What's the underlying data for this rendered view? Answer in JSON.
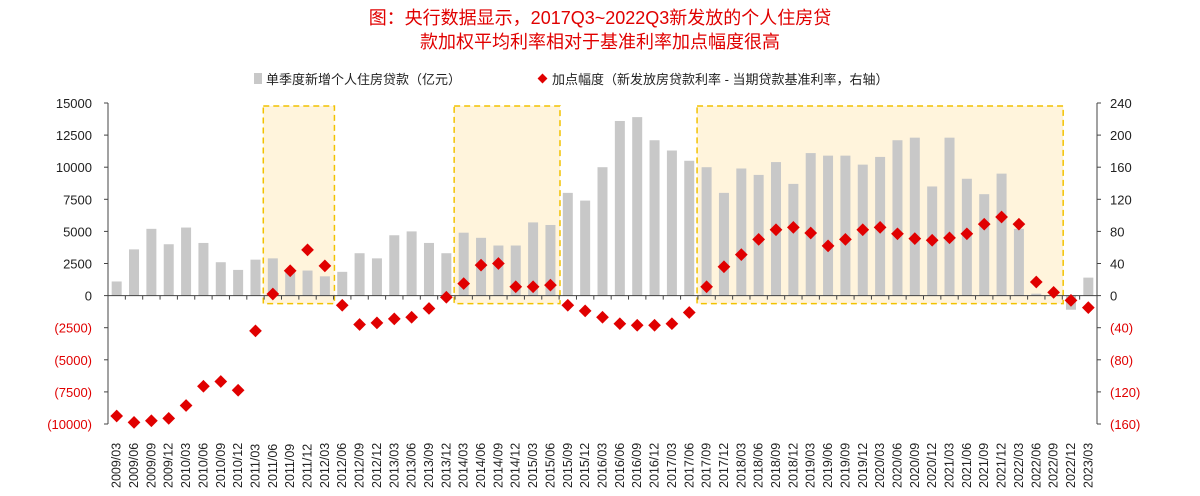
{
  "chart_data": {
    "type": "bar+scatter",
    "title_lines": [
      "图：央行数据显示，2017Q3~2022Q3新发放的个人住房贷",
      "款加权平均利率相对于基准利率加点幅度很高"
    ],
    "legend": [
      {
        "label": "单季度新增个人住房贷款（亿元）",
        "color": "#c8c8c8",
        "marker": "bar"
      },
      {
        "label": "加点幅度（新发放房贷款利率 - 当期贷款基准利率，右轴）",
        "color": "#e00000",
        "marker": "diamond"
      }
    ],
    "categories": [
      "2009/03",
      "2009/06",
      "2009/09",
      "2009/12",
      "2010/03",
      "2010/06",
      "2010/09",
      "2010/12",
      "2011/03",
      "2011/06",
      "2011/09",
      "2011/12",
      "2012/03",
      "2012/06",
      "2012/09",
      "2012/12",
      "2013/03",
      "2013/06",
      "2013/09",
      "2013/12",
      "2014/03",
      "2014/06",
      "2014/09",
      "2014/12",
      "2015/03",
      "2015/06",
      "2015/09",
      "2015/12",
      "2016/03",
      "2016/06",
      "2016/09",
      "2016/12",
      "2017/03",
      "2017/06",
      "2017/09",
      "2017/12",
      "2018/03",
      "2018/06",
      "2018/09",
      "2018/12",
      "2019/03",
      "2019/06",
      "2019/09",
      "2019/12",
      "2020/03",
      "2020/06",
      "2020/09",
      "2020/12",
      "2021/03",
      "2021/06",
      "2021/09",
      "2021/12",
      "2022/03",
      "2022/06",
      "2022/09",
      "2022/12",
      "2023/03"
    ],
    "bars": [
      1100,
      3600,
      5200,
      4000,
      5300,
      4100,
      2600,
      2000,
      2800,
      2900,
      2000,
      1950,
      1500,
      1850,
      3300,
      2900,
      4700,
      5000,
      4100,
      3300,
      4900,
      4500,
      3900,
      3900,
      5700,
      5500,
      8000,
      7400,
      10000,
      13600,
      13900,
      12100,
      11300,
      10500,
      10000,
      8000,
      9900,
      9400,
      10400,
      8700,
      11100,
      10900,
      10900,
      10200,
      10800,
      12100,
      12300,
      8500,
      12300,
      9100,
      7900,
      9500,
      5200,
      150,
      0,
      -1100,
      1400
    ],
    "points": [
      -150,
      -158,
      -156,
      -153,
      -137,
      -113,
      -107,
      -118,
      -44,
      2,
      31,
      57,
      37,
      -12,
      -36,
      -34,
      -29,
      -27,
      -16,
      -2,
      15,
      38,
      40,
      11,
      11,
      13,
      -12,
      -19,
      -27,
      -35,
      -37,
      -37,
      -35,
      -21,
      11,
      36,
      51,
      70,
      82,
      85,
      78,
      62,
      70,
      82,
      85,
      77,
      71,
      69,
      72,
      77,
      89,
      98,
      89,
      17,
      4,
      -6,
      -15
    ],
    "y_left": {
      "range": [
        -10000,
        15000
      ],
      "ticks": [
        "(10000)",
        "(7500)",
        "(5000)",
        "(2500)",
        "0",
        "2500",
        "5000",
        "7500",
        "10000",
        "12500",
        "15000"
      ],
      "tick_values": [
        -10000,
        -7500,
        -5000,
        -2500,
        0,
        2500,
        5000,
        7500,
        10000,
        12500,
        15000
      ]
    },
    "y_right": {
      "range": [
        -160,
        240
      ],
      "ticks": [
        "(160)",
        "(120)",
        "(80)",
        "(40)",
        "0",
        "40",
        "80",
        "120",
        "160",
        "200",
        "240"
      ]
    },
    "highlight_periods": [
      [
        "2011/06",
        "2012/03"
      ],
      [
        "2014/03",
        "2015/06"
      ],
      [
        "2017/09",
        "2022/09"
      ]
    ],
    "colors": {
      "bar": "#c8c8c8",
      "point": "#e00000",
      "title": "#e00000",
      "negative_tick": "#e00000",
      "highlight_fill": "#fff4dc",
      "highlight_border": "#f2c200"
    },
    "grid": false
  }
}
